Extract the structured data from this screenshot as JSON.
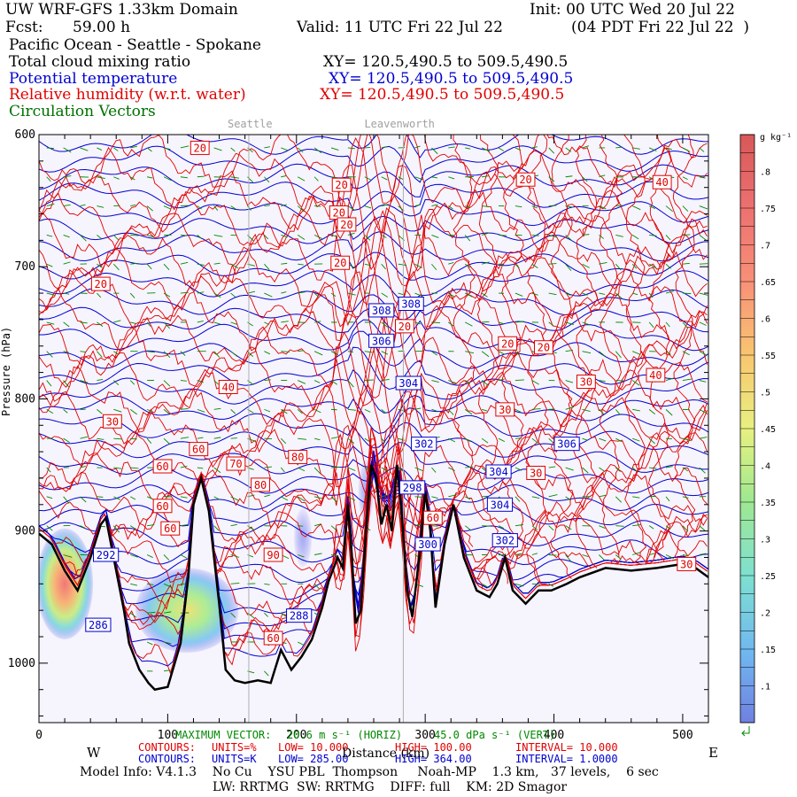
{
  "header": {
    "title_left": "UW WRF-GFS 1.33km Domain",
    "title_right": "Init: 00 UTC Wed 20 Jul 22",
    "fcst_label": "Fcst:",
    "fcst_value": "59.00 h",
    "valid": "Valid: 11 UTC Fri 22 Jul 22",
    "valid_local": "(04 PDT Fri 22 Jul 22  )",
    "region": "Pacific Ocean - Seattle - Spokane",
    "field1": "Total cloud mixing ratio",
    "field1_xy": "XY= 120.5,490.5 to 509.5,490.5",
    "field2": "Potential temperature",
    "field2_xy": "XY= 120.5,490.5 to 509.5,490.5",
    "field3": "Relative humidity (w.r.t. water)",
    "field3_xy": "XY= 120.5,490.5 to 509.5,490.5",
    "field4": "Circulation Vectors"
  },
  "colors": {
    "temp": "#0000d0",
    "rh": "#e00000",
    "vector": "#008800",
    "terrain": "#000000",
    "plot_bg": "#f6f4fc"
  },
  "chart_data": {
    "type": "heatmap",
    "description_units": {
      "cloud": "g kg⁻¹",
      "rh": "%",
      "theta": "K"
    },
    "x_ticks": [
      0,
      100,
      200,
      300,
      400,
      500
    ],
    "x_range": [
      0,
      520
    ],
    "y_ticks": [
      600,
      700,
      800,
      900,
      1000
    ],
    "y_range": [
      600,
      1045
    ],
    "xlabel": "Distance (km)",
    "ylabel": "Pressure (hPa)",
    "west_label": "W",
    "east_label": "E",
    "city_labels": [
      {
        "name": "Seattle",
        "x": 163
      },
      {
        "name": "Leavenworth",
        "x": 283
      }
    ],
    "colorbar": {
      "unit_label": "g kg⁻¹",
      "ticks": [
        ".1",
        ".15",
        ".2",
        ".25",
        ".3",
        ".35",
        ".4",
        ".45",
        ".5",
        ".55",
        ".6",
        ".65",
        ".7",
        ".75",
        ".8"
      ],
      "range": [
        0.05,
        0.85
      ]
    },
    "terrain_profile": [
      [
        0,
        902
      ],
      [
        10,
        910
      ],
      [
        20,
        930
      ],
      [
        30,
        945
      ],
      [
        40,
        920
      ],
      [
        48,
        895
      ],
      [
        52,
        890
      ],
      [
        60,
        930
      ],
      [
        66,
        960
      ],
      [
        70,
        985
      ],
      [
        78,
        1005
      ],
      [
        85,
        1015
      ],
      [
        90,
        1020
      ],
      [
        100,
        1018
      ],
      [
        110,
        985
      ],
      [
        116,
        935
      ],
      [
        120,
        880
      ],
      [
        126,
        860
      ],
      [
        132,
        885
      ],
      [
        140,
        955
      ],
      [
        145,
        1005
      ],
      [
        152,
        1013
      ],
      [
        160,
        1015
      ],
      [
        170,
        1013
      ],
      [
        180,
        1015
      ],
      [
        188,
        990
      ],
      [
        196,
        1005
      ],
      [
        204,
        995
      ],
      [
        212,
        982
      ],
      [
        220,
        958
      ],
      [
        225,
        938
      ],
      [
        232,
        920
      ],
      [
        236,
        928
      ],
      [
        240,
        880
      ],
      [
        243,
        918
      ],
      [
        246,
        970
      ],
      [
        250,
        960
      ],
      [
        254,
        900
      ],
      [
        258,
        850
      ],
      [
        262,
        860
      ],
      [
        266,
        895
      ],
      [
        270,
        880
      ],
      [
        274,
        900
      ],
      [
        278,
        850
      ],
      [
        282,
        890
      ],
      [
        286,
        945
      ],
      [
        290,
        965
      ],
      [
        296,
        915
      ],
      [
        300,
        870
      ],
      [
        304,
        900
      ],
      [
        308,
        958
      ],
      [
        315,
        910
      ],
      [
        322,
        880
      ],
      [
        330,
        920
      ],
      [
        340,
        945
      ],
      [
        350,
        950
      ],
      [
        356,
        940
      ],
      [
        362,
        920
      ],
      [
        368,
        945
      ],
      [
        378,
        955
      ],
      [
        388,
        945
      ],
      [
        398,
        945
      ],
      [
        410,
        940
      ],
      [
        420,
        935
      ],
      [
        440,
        928
      ],
      [
        460,
        930
      ],
      [
        480,
        928
      ],
      [
        500,
        925
      ],
      [
        510,
        928
      ],
      [
        520,
        935
      ]
    ],
    "cloud_blobs": [
      {
        "x": 20,
        "p": 940,
        "rx": 22,
        "ry": 42,
        "value": 0.6
      },
      {
        "x": 115,
        "p": 960,
        "rx": 40,
        "ry": 32,
        "value": 0.35
      },
      {
        "x": 205,
        "p": 905,
        "rx": 7,
        "ry": 22,
        "value": 0.12
      },
      {
        "x": 254,
        "p": 870,
        "rx": 6,
        "ry": 24,
        "value": 0.1
      }
    ],
    "theta_labels": [
      {
        "x": 52,
        "p": 918,
        "t": "292"
      },
      {
        "x": 46,
        "p": 971,
        "t": "286"
      },
      {
        "x": 202,
        "p": 964,
        "t": "288"
      },
      {
        "x": 289,
        "p": 728,
        "t": "308"
      },
      {
        "x": 266,
        "p": 733,
        "t": "308"
      },
      {
        "x": 266,
        "p": 756,
        "t": "306"
      },
      {
        "x": 287,
        "p": 788,
        "t": "304"
      },
      {
        "x": 299,
        "p": 834,
        "t": "302"
      },
      {
        "x": 290,
        "p": 867,
        "t": "298"
      },
      {
        "x": 302,
        "p": 910,
        "t": "300"
      },
      {
        "x": 357,
        "p": 855,
        "t": "304"
      },
      {
        "x": 358,
        "p": 880,
        "t": "304"
      },
      {
        "x": 362,
        "p": 907,
        "t": "302"
      },
      {
        "x": 410,
        "p": 834,
        "t": "306"
      }
    ],
    "rh_labels": [
      {
        "x": 125,
        "p": 610,
        "t": "20"
      },
      {
        "x": 235,
        "p": 638,
        "t": "20"
      },
      {
        "x": 233,
        "p": 659,
        "t": "20"
      },
      {
        "x": 239,
        "p": 668,
        "t": "20"
      },
      {
        "x": 234,
        "p": 697,
        "t": "20"
      },
      {
        "x": 378,
        "p": 634,
        "t": "20"
      },
      {
        "x": 484,
        "p": 636,
        "t": "40"
      },
      {
        "x": 48,
        "p": 713,
        "t": "20"
      },
      {
        "x": 284,
        "p": 745,
        "t": "20"
      },
      {
        "x": 364,
        "p": 758,
        "t": "20"
      },
      {
        "x": 392,
        "p": 761,
        "t": "20"
      },
      {
        "x": 425,
        "p": 787,
        "t": "30"
      },
      {
        "x": 479,
        "p": 782,
        "t": "40"
      },
      {
        "x": 147,
        "p": 791,
        "t": "40"
      },
      {
        "x": 57,
        "p": 817,
        "t": "30"
      },
      {
        "x": 362,
        "p": 808,
        "t": "30"
      },
      {
        "x": 124,
        "p": 838,
        "t": "60"
      },
      {
        "x": 96,
        "p": 851,
        "t": "60"
      },
      {
        "x": 153,
        "p": 849,
        "t": "70"
      },
      {
        "x": 201,
        "p": 844,
        "t": "80"
      },
      {
        "x": 172,
        "p": 865,
        "t": "80"
      },
      {
        "x": 96,
        "p": 881,
        "t": "60"
      },
      {
        "x": 102,
        "p": 898,
        "t": "60"
      },
      {
        "x": 182,
        "p": 918,
        "t": "90"
      },
      {
        "x": 386,
        "p": 856,
        "t": "30"
      },
      {
        "x": 306,
        "p": 890,
        "t": "60"
      },
      {
        "x": 503,
        "p": 925,
        "t": "30"
      },
      {
        "x": 182,
        "p": 981,
        "t": "60"
      }
    ],
    "legend_lines": [
      {
        "label": "MAXIMUM VECTOR:",
        "value1": "20.6 m s⁻¹ (HORIZ)",
        "value2": "45.0 dPa s⁻¹ (VERT)"
      },
      {
        "label": "CONTOURS:",
        "units": "UNITS=%",
        "low": "LOW= 10.000",
        "high": "HIGH= 100.00",
        "interval": "INTERVAL= 10.000"
      },
      {
        "label": "CONTOURS:",
        "units": "UNITS=K",
        "low": "LOW= 285.00",
        "high": "HIGH= 364.00",
        "interval": "INTERVAL= 1.0000"
      }
    ]
  },
  "footer": {
    "model_info": "Model Info: V4.1.3    No Cu    YSU PBL  Thompson     Noah-MP    1.3 km,   37 levels,    6 sec",
    "physics": "LW: RRTMG  SW: RRTMG    DIFF: full    KM: 2D Smagor"
  }
}
